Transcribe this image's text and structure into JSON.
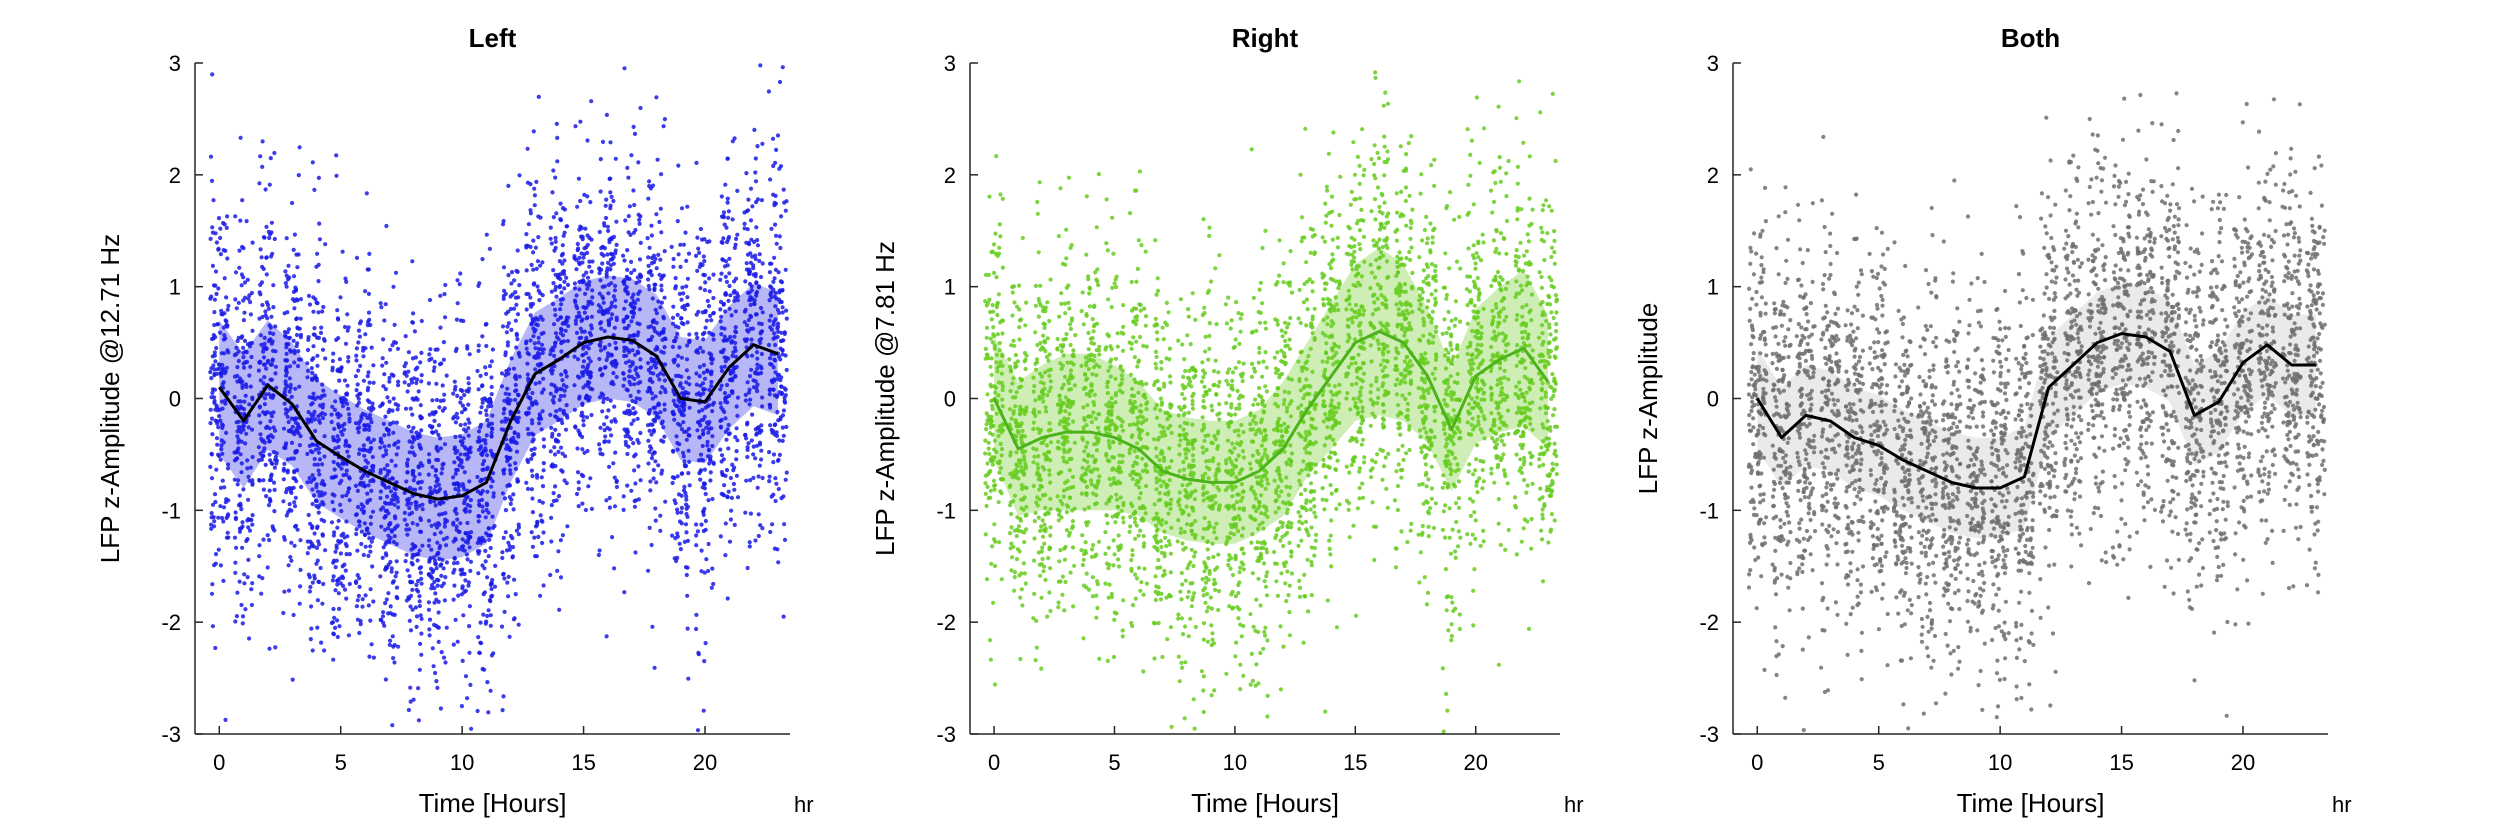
{
  "chart_data": [
    {
      "type": "scatter",
      "title": "Left",
      "xlabel": "Time [Hours]",
      "ylabel": "LFP z-Amplitude @12.71 Hz",
      "x_unit": "hr",
      "xlim": [
        -1,
        23.5
      ],
      "ylim": [
        -3,
        3
      ],
      "xticks": [
        0,
        5,
        10,
        15,
        20
      ],
      "yticks": [
        -3,
        -2,
        -1,
        0,
        1,
        2,
        3
      ],
      "grid": false,
      "point_color": "#1a1ae6",
      "band_color": "#7b7bf2",
      "line_color": "#000000",
      "hours": [
        0,
        1,
        2,
        3,
        4,
        5,
        6,
        7,
        8,
        9,
        10,
        11,
        12,
        13,
        14,
        15,
        16,
        17,
        18,
        19,
        20,
        21,
        22,
        23
      ],
      "mean": [
        0.1,
        -0.2,
        0.12,
        -0.05,
        -0.38,
        -0.52,
        -0.65,
        -0.75,
        -0.85,
        -0.9,
        -0.87,
        -0.75,
        -0.2,
        0.22,
        0.35,
        0.5,
        0.55,
        0.52,
        0.38,
        0.0,
        -0.03,
        0.28,
        0.48,
        0.4
      ],
      "band_half_width": [
        0.6,
        0.6,
        0.58,
        0.55,
        0.55,
        0.55,
        0.55,
        0.55,
        0.55,
        0.55,
        0.55,
        0.55,
        0.55,
        0.55,
        0.55,
        0.55,
        0.55,
        0.55,
        0.55,
        0.55,
        0.55,
        0.55,
        0.55,
        0.55
      ],
      "points_per_hour": 180,
      "point_spread_sd": 0.85
    },
    {
      "type": "scatter",
      "title": "Right",
      "xlabel": "Time [Hours]",
      "ylabel": "LFP z-Amplitude @7.81 Hz",
      "x_unit": "hr",
      "xlim": [
        -1,
        23.5
      ],
      "ylim": [
        -3,
        3
      ],
      "xticks": [
        0,
        5,
        10,
        15,
        20
      ],
      "yticks": [
        -3,
        -2,
        -1,
        0,
        1,
        2,
        3
      ],
      "grid": false,
      "point_color": "#66cc1f",
      "band_color": "#a6e07a",
      "line_color": "#4db31a",
      "hours": [
        0,
        1,
        2,
        3,
        4,
        5,
        6,
        7,
        8,
        9,
        10,
        11,
        12,
        13,
        14,
        15,
        16,
        17,
        18,
        19,
        20,
        21,
        22,
        23
      ],
      "mean": [
        0.0,
        -0.45,
        -0.35,
        -0.3,
        -0.3,
        -0.35,
        -0.45,
        -0.65,
        -0.72,
        -0.75,
        -0.75,
        -0.65,
        -0.45,
        -0.1,
        0.2,
        0.5,
        0.6,
        0.5,
        0.2,
        -0.28,
        0.2,
        0.35,
        0.45,
        0.15
      ],
      "band_half_width": [
        0.55,
        0.6,
        0.65,
        0.7,
        0.7,
        0.65,
        0.6,
        0.55,
        0.55,
        0.55,
        0.55,
        0.55,
        0.6,
        0.6,
        0.65,
        0.7,
        0.75,
        0.7,
        0.6,
        0.55,
        0.6,
        0.65,
        0.7,
        0.6
      ],
      "points_per_hour": 170,
      "point_spread_sd": 0.85
    },
    {
      "type": "scatter",
      "title": "Both",
      "xlabel": "Time [Hours]",
      "ylabel": "LFP z-Amplitude",
      "x_unit": "hr",
      "xlim": [
        -1,
        23.5
      ],
      "ylim": [
        -3,
        3
      ],
      "xticks": [
        0,
        5,
        10,
        15,
        20
      ],
      "yticks": [
        -3,
        -2,
        -1,
        0,
        1,
        2,
        3
      ],
      "grid": false,
      "point_color": "#6e6e6e",
      "band_color": "#d9d9d9",
      "line_color": "#000000",
      "hours": [
        0,
        1,
        2,
        3,
        4,
        5,
        6,
        7,
        8,
        9,
        10,
        11,
        12,
        13,
        14,
        15,
        16,
        17,
        18,
        19,
        20,
        21,
        22,
        23
      ],
      "mean": [
        0.0,
        -0.35,
        -0.15,
        -0.2,
        -0.35,
        -0.42,
        -0.55,
        -0.65,
        -0.75,
        -0.8,
        -0.8,
        -0.7,
        0.1,
        0.3,
        0.5,
        0.58,
        0.55,
        0.42,
        -0.15,
        -0.03,
        0.32,
        0.48,
        0.3,
        0.3
      ],
      "band_half_width": [
        0.45,
        0.45,
        0.45,
        0.45,
        0.45,
        0.45,
        0.45,
        0.45,
        0.45,
        0.45,
        0.45,
        0.45,
        0.45,
        0.45,
        0.45,
        0.45,
        0.45,
        0.45,
        0.45,
        0.45,
        0.45,
        0.45,
        0.45,
        0.45
      ],
      "points_per_hour": 170,
      "point_spread_sd": 0.85
    }
  ]
}
